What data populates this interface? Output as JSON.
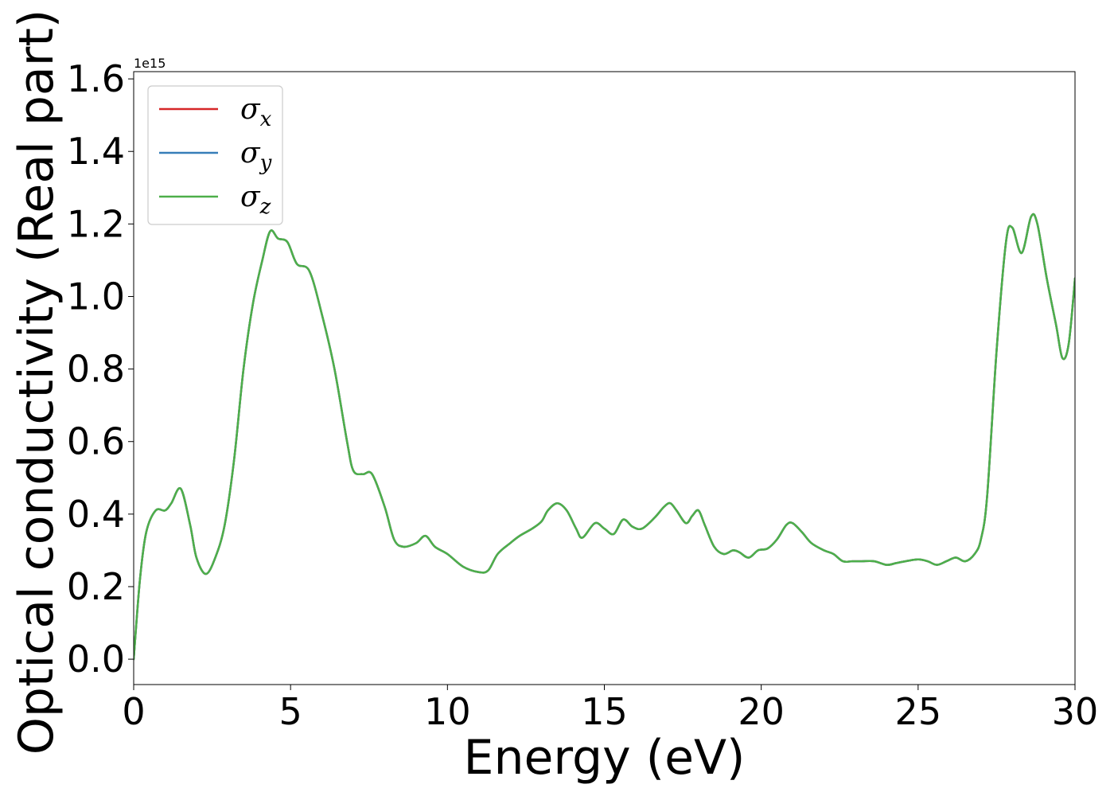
{
  "chart_data": {
    "type": "line",
    "title": "",
    "xlabel": "Energy (eV)",
    "ylabel": "Optical conductivity (Real part)",
    "y_offset_label": "1e15",
    "xlim": [
      0,
      30
    ],
    "ylim": [
      -0.07,
      1.62
    ],
    "x_ticks": [
      0,
      5,
      10,
      15,
      20,
      25,
      30
    ],
    "x_tick_labels": [
      "0",
      "5",
      "10",
      "15",
      "20",
      "25",
      "30"
    ],
    "y_ticks": [
      0.0,
      0.2,
      0.4,
      0.6,
      0.8,
      1.0,
      1.2,
      1.4,
      1.6
    ],
    "y_tick_labels": [
      "0.0",
      "0.2",
      "0.4",
      "0.6",
      "0.8",
      "1.0",
      "1.2",
      "1.4",
      "1.6"
    ],
    "grid": false,
    "legend_position": "top-left",
    "series": [
      {
        "name": "σx",
        "symbol": "σ",
        "subscript": "x",
        "color": "#d62728",
        "x": [
          0,
          0.2,
          0.4,
          0.7,
          1.0,
          1.2,
          1.5,
          1.8,
          2.0,
          2.3,
          2.6,
          2.9,
          3.2,
          3.5,
          3.8,
          4.1,
          4.35,
          4.6,
          4.9,
          5.2,
          5.6,
          6.0,
          6.4,
          6.8,
          7.0,
          7.3,
          7.6,
          8.0,
          8.3,
          8.6,
          9.0,
          9.3,
          9.6,
          10.0,
          10.5,
          11.0,
          11.3,
          11.6,
          12.0,
          12.3,
          12.7,
          13.0,
          13.2,
          13.5,
          13.8,
          14.1,
          14.3,
          14.7,
          15.0,
          15.3,
          15.6,
          15.9,
          16.2,
          16.6,
          16.9,
          17.1,
          17.3,
          17.6,
          17.8,
          18.0,
          18.2,
          18.5,
          18.8,
          19.1,
          19.3,
          19.6,
          19.9,
          20.2,
          20.5,
          20.8,
          21.0,
          21.3,
          21.6,
          22.0,
          22.3,
          22.6,
          22.9,
          23.2,
          23.6,
          24.0,
          24.3,
          24.6,
          25.0,
          25.3,
          25.6,
          25.9,
          26.2,
          26.5,
          26.8,
          27.0,
          27.2,
          27.5,
          27.8,
          28.0,
          28.3,
          28.6,
          28.8,
          29.1,
          29.4,
          29.6,
          29.8,
          30.0
        ],
        "y": [
          0.0,
          0.22,
          0.35,
          0.41,
          0.41,
          0.43,
          0.47,
          0.37,
          0.28,
          0.235,
          0.28,
          0.37,
          0.55,
          0.8,
          0.98,
          1.1,
          1.18,
          1.16,
          1.15,
          1.09,
          1.07,
          0.95,
          0.8,
          0.6,
          0.52,
          0.51,
          0.51,
          0.42,
          0.33,
          0.31,
          0.32,
          0.34,
          0.31,
          0.29,
          0.255,
          0.24,
          0.245,
          0.29,
          0.32,
          0.34,
          0.36,
          0.38,
          0.41,
          0.43,
          0.41,
          0.36,
          0.335,
          0.375,
          0.36,
          0.345,
          0.385,
          0.365,
          0.36,
          0.39,
          0.42,
          0.43,
          0.41,
          0.375,
          0.395,
          0.41,
          0.37,
          0.31,
          0.29,
          0.3,
          0.295,
          0.28,
          0.3,
          0.305,
          0.33,
          0.37,
          0.375,
          0.35,
          0.32,
          0.3,
          0.29,
          0.27,
          0.27,
          0.27,
          0.27,
          0.26,
          0.265,
          0.27,
          0.275,
          0.27,
          0.26,
          0.27,
          0.28,
          0.27,
          0.29,
          0.33,
          0.45,
          0.85,
          1.15,
          1.19,
          1.12,
          1.22,
          1.2,
          1.05,
          0.92,
          0.83,
          0.87,
          1.05
        ]
      },
      {
        "name": "σy",
        "symbol": "σ",
        "subscript": "y",
        "color": "#377eb8",
        "x": [
          0,
          0.2,
          0.4,
          0.7,
          1.0,
          1.2,
          1.5,
          1.8,
          2.0,
          2.3,
          2.6,
          2.9,
          3.2,
          3.5,
          3.8,
          4.1,
          4.35,
          4.6,
          4.9,
          5.2,
          5.6,
          6.0,
          6.4,
          6.8,
          7.0,
          7.3,
          7.6,
          8.0,
          8.3,
          8.6,
          9.0,
          9.3,
          9.6,
          10.0,
          10.5,
          11.0,
          11.3,
          11.6,
          12.0,
          12.3,
          12.7,
          13.0,
          13.2,
          13.5,
          13.8,
          14.1,
          14.3,
          14.7,
          15.0,
          15.3,
          15.6,
          15.9,
          16.2,
          16.6,
          16.9,
          17.1,
          17.3,
          17.6,
          17.8,
          18.0,
          18.2,
          18.5,
          18.8,
          19.1,
          19.3,
          19.6,
          19.9,
          20.2,
          20.5,
          20.8,
          21.0,
          21.3,
          21.6,
          22.0,
          22.3,
          22.6,
          22.9,
          23.2,
          23.6,
          24.0,
          24.3,
          24.6,
          25.0,
          25.3,
          25.6,
          25.9,
          26.2,
          26.5,
          26.8,
          27.0,
          27.2,
          27.5,
          27.8,
          28.0,
          28.3,
          28.6,
          28.8,
          29.1,
          29.4,
          29.6,
          29.8,
          30.0
        ],
        "y": [
          0.0,
          0.22,
          0.35,
          0.41,
          0.41,
          0.43,
          0.47,
          0.37,
          0.28,
          0.235,
          0.28,
          0.37,
          0.55,
          0.8,
          0.98,
          1.1,
          1.18,
          1.16,
          1.15,
          1.09,
          1.07,
          0.95,
          0.8,
          0.6,
          0.52,
          0.51,
          0.51,
          0.42,
          0.33,
          0.31,
          0.32,
          0.34,
          0.31,
          0.29,
          0.255,
          0.24,
          0.245,
          0.29,
          0.32,
          0.34,
          0.36,
          0.38,
          0.41,
          0.43,
          0.41,
          0.36,
          0.335,
          0.375,
          0.36,
          0.345,
          0.385,
          0.365,
          0.36,
          0.39,
          0.42,
          0.43,
          0.41,
          0.375,
          0.395,
          0.41,
          0.37,
          0.31,
          0.29,
          0.3,
          0.295,
          0.28,
          0.3,
          0.305,
          0.33,
          0.37,
          0.375,
          0.35,
          0.32,
          0.3,
          0.29,
          0.27,
          0.27,
          0.27,
          0.27,
          0.26,
          0.265,
          0.27,
          0.275,
          0.27,
          0.26,
          0.27,
          0.28,
          0.27,
          0.29,
          0.33,
          0.45,
          0.85,
          1.15,
          1.19,
          1.12,
          1.22,
          1.2,
          1.05,
          0.92,
          0.83,
          0.87,
          1.05
        ]
      },
      {
        "name": "σz",
        "symbol": "σ",
        "subscript": "z",
        "color": "#4daf4a",
        "x": [
          0,
          0.2,
          0.4,
          0.7,
          1.0,
          1.2,
          1.5,
          1.8,
          2.0,
          2.3,
          2.6,
          2.9,
          3.2,
          3.5,
          3.8,
          4.1,
          4.35,
          4.6,
          4.9,
          5.2,
          5.6,
          6.0,
          6.4,
          6.8,
          7.0,
          7.3,
          7.6,
          8.0,
          8.3,
          8.6,
          9.0,
          9.3,
          9.6,
          10.0,
          10.5,
          11.0,
          11.3,
          11.6,
          12.0,
          12.3,
          12.7,
          13.0,
          13.2,
          13.5,
          13.8,
          14.1,
          14.3,
          14.7,
          15.0,
          15.3,
          15.6,
          15.9,
          16.2,
          16.6,
          16.9,
          17.1,
          17.3,
          17.6,
          17.8,
          18.0,
          18.2,
          18.5,
          18.8,
          19.1,
          19.3,
          19.6,
          19.9,
          20.2,
          20.5,
          20.8,
          21.0,
          21.3,
          21.6,
          22.0,
          22.3,
          22.6,
          22.9,
          23.2,
          23.6,
          24.0,
          24.3,
          24.6,
          25.0,
          25.3,
          25.6,
          25.9,
          26.2,
          26.5,
          26.8,
          27.0,
          27.2,
          27.5,
          27.8,
          28.0,
          28.3,
          28.6,
          28.8,
          29.1,
          29.4,
          29.6,
          29.8,
          30.0
        ],
        "y": [
          0.0,
          0.22,
          0.35,
          0.41,
          0.41,
          0.43,
          0.47,
          0.37,
          0.28,
          0.235,
          0.28,
          0.37,
          0.55,
          0.8,
          0.98,
          1.1,
          1.18,
          1.16,
          1.15,
          1.09,
          1.07,
          0.95,
          0.8,
          0.6,
          0.52,
          0.51,
          0.51,
          0.42,
          0.33,
          0.31,
          0.32,
          0.34,
          0.31,
          0.29,
          0.255,
          0.24,
          0.245,
          0.29,
          0.32,
          0.34,
          0.36,
          0.38,
          0.41,
          0.43,
          0.41,
          0.36,
          0.335,
          0.375,
          0.36,
          0.345,
          0.385,
          0.365,
          0.36,
          0.39,
          0.42,
          0.43,
          0.41,
          0.375,
          0.395,
          0.41,
          0.37,
          0.31,
          0.29,
          0.3,
          0.295,
          0.28,
          0.3,
          0.305,
          0.33,
          0.37,
          0.375,
          0.35,
          0.32,
          0.3,
          0.29,
          0.27,
          0.27,
          0.27,
          0.27,
          0.26,
          0.265,
          0.27,
          0.275,
          0.27,
          0.26,
          0.27,
          0.28,
          0.27,
          0.29,
          0.33,
          0.45,
          0.85,
          1.15,
          1.19,
          1.12,
          1.22,
          1.2,
          1.05,
          0.92,
          0.83,
          0.87,
          1.05
        ]
      }
    ]
  }
}
